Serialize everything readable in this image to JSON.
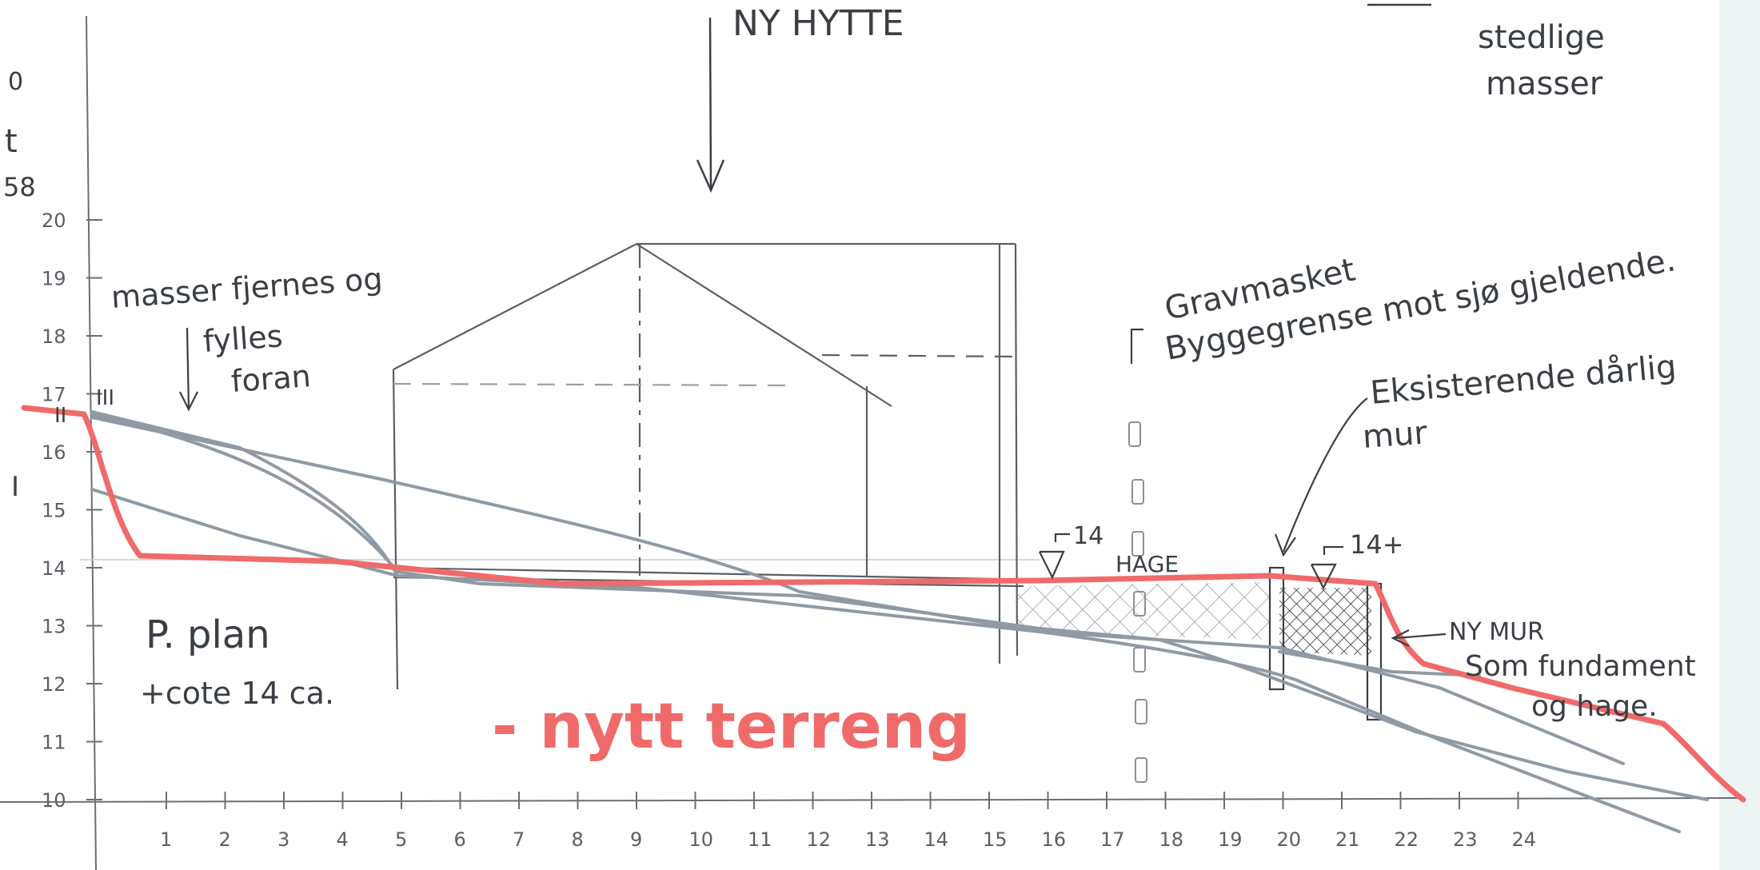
{
  "title": "NY HYTTE",
  "labels": {
    "stedlige": "stedlige",
    "masser": "masser",
    "masser_fjernes_line1": "masser fjernes og",
    "masser_fjernes_line2": "fylles",
    "masser_fjernes_line3": "foran",
    "gravmasket": "Gravmasket",
    "byggegrense": "Byggegrense mot sjø gjeldende.",
    "eksisterende_line1": "Eksisterende dårlig",
    "eksisterende_line2": "mur",
    "hage": "HAGE",
    "ny_mur": "NY MUR",
    "som_fundament": "Som fundament",
    "og_hage": "og hage.",
    "p_plan": "P. plan",
    "cote": "+cote 14 ca.",
    "nytt_terreng": "- nytt terreng",
    "mark_14": "14",
    "mark_14plus": "14+",
    "roman_1": "I",
    "roman_2": "II",
    "roman_3": "III",
    "margin_0": "0",
    "margin_t": "t",
    "margin_58": "58"
  },
  "axes": {
    "y_ticks": [
      "10",
      "11",
      "12",
      "13",
      "14",
      "15",
      "16",
      "17",
      "18",
      "19",
      "20"
    ],
    "x_ticks": [
      "1",
      "2",
      "3",
      "4",
      "5",
      "6",
      "7",
      "8",
      "9",
      "10",
      "11",
      "12",
      "13",
      "14",
      "15",
      "16",
      "17",
      "18",
      "19",
      "20",
      "21",
      "22",
      "23",
      "24"
    ]
  },
  "colors": {
    "red_terrain": "#f06a6a",
    "grey_profile": "#8f9aa4",
    "ink": "#3a3f44"
  }
}
